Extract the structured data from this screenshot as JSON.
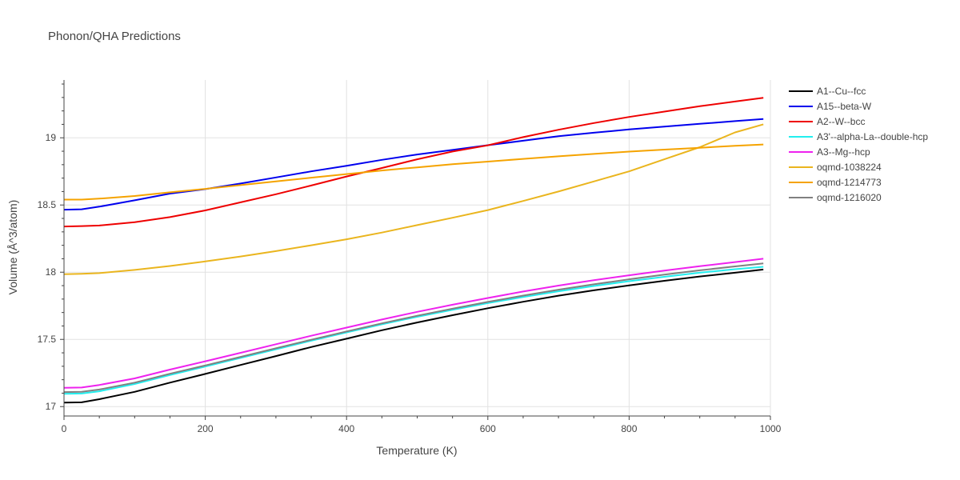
{
  "chart_data": {
    "type": "line",
    "title": "Phonon/QHA Predictions",
    "xlabel": "Temperature (K)",
    "ylabel": "Volume (Å^3/atom)",
    "xlim": [
      0,
      1000
    ],
    "ylim": [
      16.93,
      19.43
    ],
    "xticks": [
      0,
      200,
      400,
      600,
      800,
      1000
    ],
    "yticks": [
      17,
      17.5,
      18,
      18.5,
      19
    ],
    "xtick_labels": [
      "0",
      "200",
      "400",
      "600",
      "800",
      "1000"
    ],
    "ytick_labels": [
      "17",
      "17.5",
      "18",
      "18.5",
      "19"
    ],
    "grid": true,
    "legend_position": "right",
    "x": [
      0,
      25,
      50,
      100,
      150,
      200,
      250,
      300,
      350,
      400,
      450,
      500,
      550,
      600,
      650,
      700,
      750,
      800,
      850,
      900,
      950,
      990
    ],
    "series": [
      {
        "name": "A1--Cu--fcc",
        "color": "#000000",
        "values": [
          17.03,
          17.032,
          17.055,
          17.11,
          17.178,
          17.243,
          17.31,
          17.376,
          17.443,
          17.505,
          17.568,
          17.626,
          17.68,
          17.732,
          17.78,
          17.825,
          17.865,
          17.902,
          17.936,
          17.968,
          17.996,
          18.02
        ]
      },
      {
        "name": "A15--beta-W",
        "color": "#0000ee",
        "values": [
          18.465,
          18.468,
          18.488,
          18.535,
          18.585,
          18.618,
          18.66,
          18.705,
          18.75,
          18.792,
          18.836,
          18.876,
          18.91,
          18.945,
          18.978,
          19.012,
          19.038,
          19.062,
          19.083,
          19.104,
          19.124,
          19.14
        ]
      },
      {
        "name": "A2--W--bcc",
        "color": "#ee0000",
        "values": [
          18.34,
          18.343,
          18.347,
          18.372,
          18.41,
          18.46,
          18.52,
          18.58,
          18.645,
          18.712,
          18.775,
          18.84,
          18.898,
          18.944,
          19.005,
          19.06,
          19.11,
          19.155,
          19.195,
          19.235,
          19.27,
          19.298
        ]
      },
      {
        "name": "A3'--alpha-La--double-hcp",
        "color": "#22eeee",
        "values": [
          17.095,
          17.097,
          17.114,
          17.168,
          17.235,
          17.298,
          17.362,
          17.426,
          17.49,
          17.552,
          17.612,
          17.668,
          17.72,
          17.77,
          17.815,
          17.858,
          17.897,
          17.933,
          17.966,
          17.996,
          18.022,
          18.04
        ]
      },
      {
        "name": "A3--Mg--hcp",
        "color": "#ee22ee",
        "values": [
          17.14,
          17.142,
          17.161,
          17.21,
          17.275,
          17.337,
          17.4,
          17.464,
          17.527,
          17.588,
          17.648,
          17.705,
          17.758,
          17.808,
          17.856,
          17.9,
          17.94,
          17.977,
          18.012,
          18.044,
          18.075,
          18.1
        ]
      },
      {
        "name": "oqmd-1038224",
        "color": "#eab51e",
        "values": [
          17.985,
          17.988,
          17.993,
          18.017,
          18.046,
          18.08,
          18.117,
          18.157,
          18.2,
          18.245,
          18.295,
          18.35,
          18.405,
          18.462,
          18.53,
          18.6,
          18.675,
          18.75,
          18.84,
          18.93,
          19.04,
          19.1
        ]
      },
      {
        "name": "oqmd-1214773",
        "color": "#f5a300",
        "values": [
          18.54,
          18.54,
          18.547,
          18.567,
          18.594,
          18.62,
          18.648,
          18.675,
          18.703,
          18.73,
          18.757,
          18.78,
          18.803,
          18.823,
          18.843,
          18.862,
          18.88,
          18.897,
          18.912,
          18.926,
          18.94,
          18.95
        ]
      },
      {
        "name": "oqmd-1216020",
        "color": "#808080",
        "values": [
          17.108,
          17.11,
          17.127,
          17.178,
          17.244,
          17.306,
          17.37,
          17.434,
          17.497,
          17.559,
          17.619,
          17.676,
          17.729,
          17.779,
          17.826,
          17.87,
          17.91,
          17.947,
          17.982,
          18.014,
          18.043,
          18.065
        ]
      }
    ]
  }
}
